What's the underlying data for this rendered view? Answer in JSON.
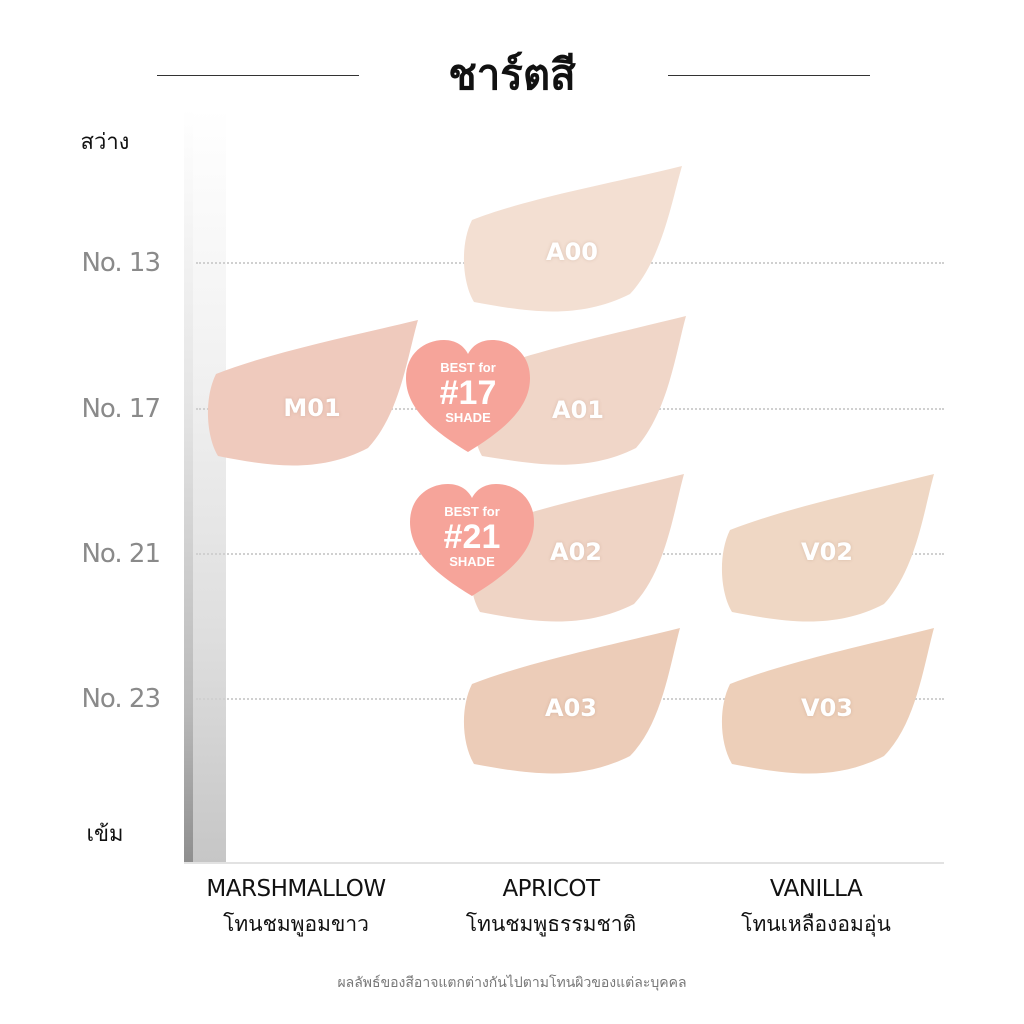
{
  "title": "ชาร์ตสี",
  "scale": {
    "light": "สว่าง",
    "dark": "เข้ม"
  },
  "rows": [
    "No. 13",
    "No. 17",
    "No. 21",
    "No. 23"
  ],
  "columns": [
    {
      "name": "MARSHMALLOW",
      "tone": "โทนชมพูอมขาว"
    },
    {
      "name": "APRICOT",
      "tone": "โทนชมพูธรรมชาติ"
    },
    {
      "name": "VANILLA",
      "tone": "โทนเหลืองอมอุ่น"
    }
  ],
  "swatches": {
    "a00": {
      "code": "A00",
      "color": "#f3dfd2"
    },
    "m01": {
      "code": "M01",
      "color": "#efcabd"
    },
    "a01": {
      "code": "A01",
      "color": "#f0d6c8"
    },
    "a02": {
      "code": "A02",
      "color": "#efd4c5"
    },
    "v02": {
      "code": "V02",
      "color": "#efd7c4"
    },
    "a03": {
      "code": "A03",
      "color": "#ecccb8"
    },
    "v03": {
      "code": "V03",
      "color": "#edcfb9"
    }
  },
  "badges": [
    {
      "line1": "BEST for",
      "line2": "#17",
      "line3": "SHADE",
      "color": "#f6a49a"
    },
    {
      "line1": "BEST for",
      "line2": "#21",
      "line3": "SHADE",
      "color": "#f6a49a"
    }
  ],
  "footnote": "ผลลัพธ์ของสีอาจแตกต่างกันไปตามโทนผิวของแต่ละบุคคล"
}
